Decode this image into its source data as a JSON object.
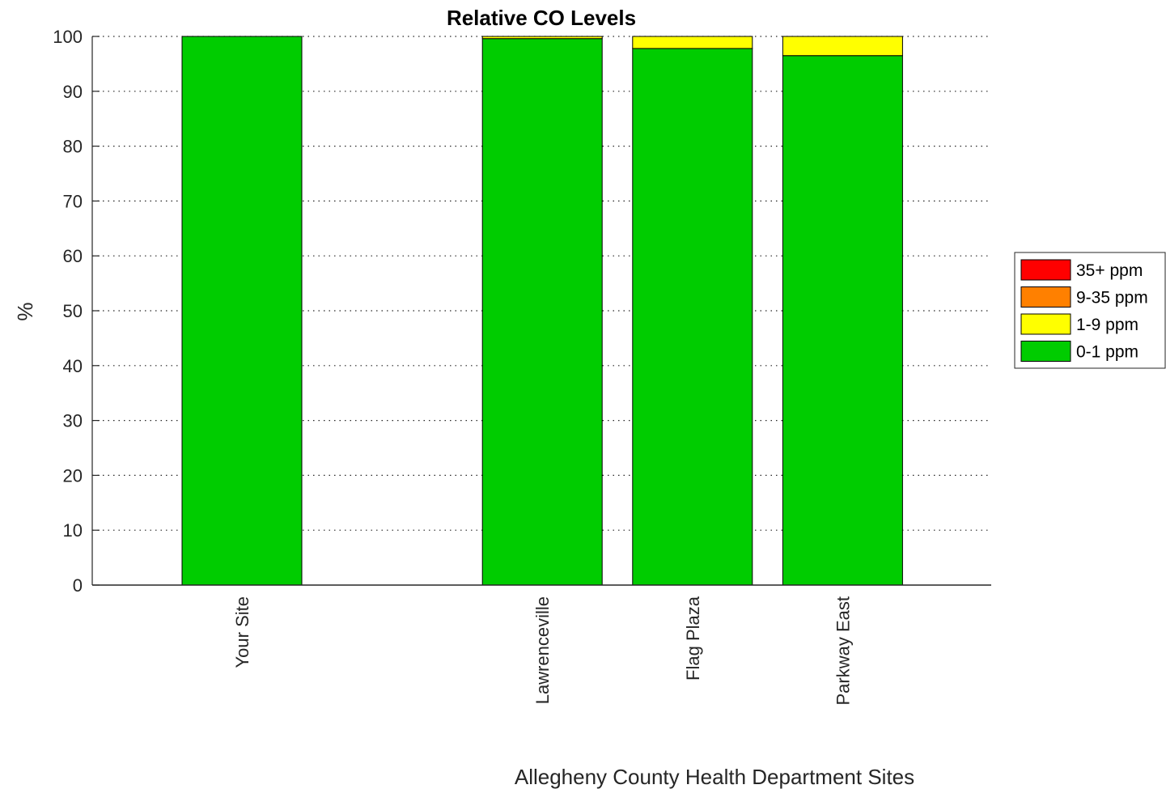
{
  "chart_data": {
    "type": "bar",
    "stacked": true,
    "title": "Relative CO Levels",
    "xlabel": "Allegheny County Health Department Sites",
    "ylabel": "%",
    "ylim": [
      0,
      100
    ],
    "yticks": [
      0,
      10,
      20,
      30,
      40,
      50,
      60,
      70,
      80,
      90,
      100
    ],
    "grid": "horizontal-dotted",
    "legend_position": "right",
    "categories": [
      "Your Site",
      "",
      "Lawrenceville",
      "Flag Plaza",
      "Parkway East"
    ],
    "series": [
      {
        "name": "0-1 ppm",
        "color": "#00cc00",
        "values": [
          100,
          0,
          99.6,
          97.8,
          96.5
        ]
      },
      {
        "name": "1-9 ppm",
        "color": "#ffff00",
        "values": [
          0,
          0,
          0.4,
          2.2,
          3.5
        ]
      },
      {
        "name": "9-35 ppm",
        "color": "#ff8000",
        "values": [
          0,
          0,
          0,
          0,
          0
        ]
      },
      {
        "name": "35+ ppm",
        "color": "#ff0000",
        "values": [
          0,
          0,
          0,
          0,
          0
        ]
      }
    ]
  }
}
